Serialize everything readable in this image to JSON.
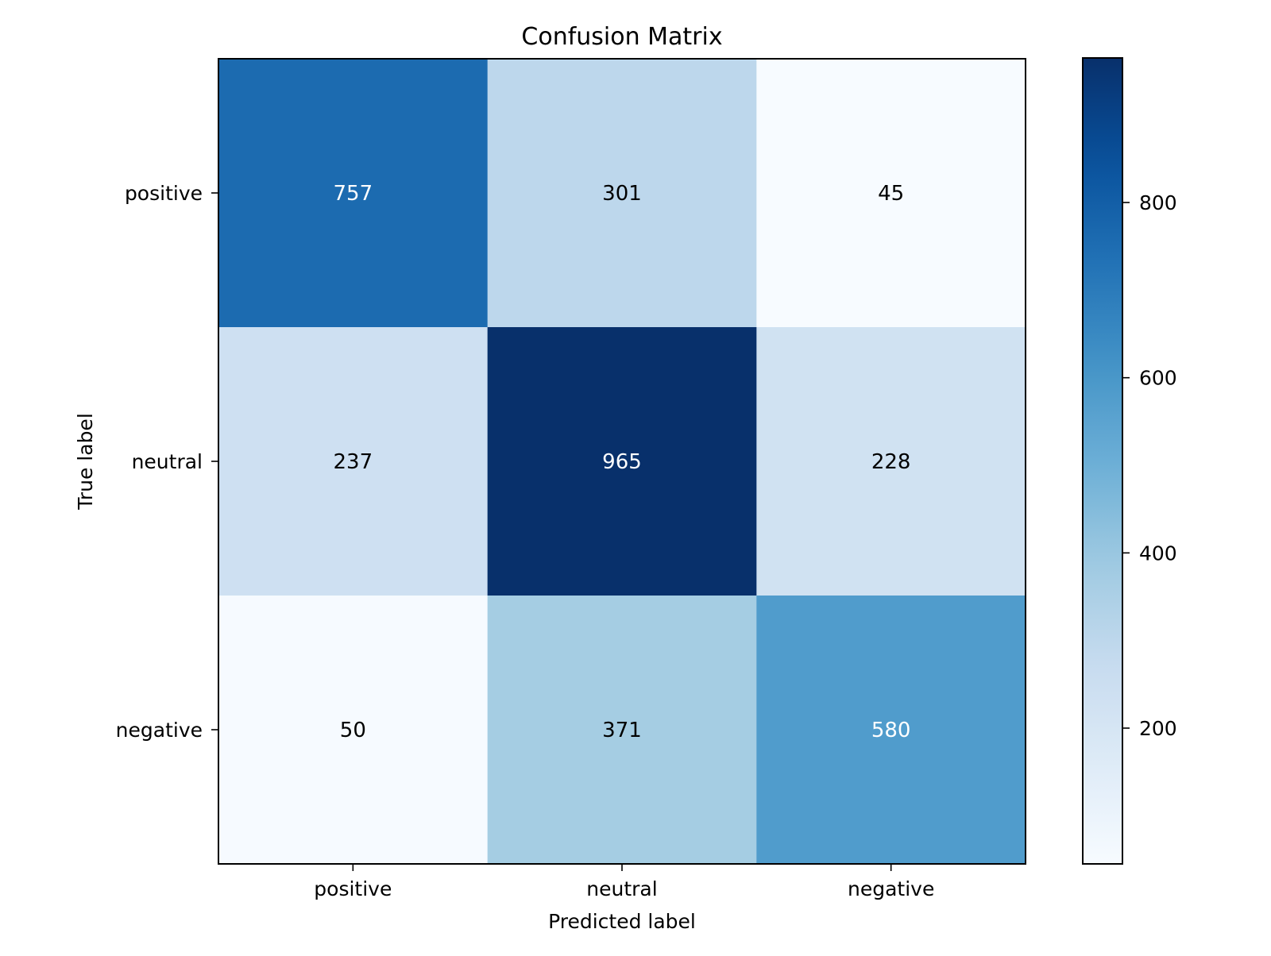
{
  "chart_data": {
    "type": "heatmap",
    "title": "Confusion Matrix",
    "xlabel": "Predicted label",
    "ylabel": "True label",
    "x_categories": [
      "positive",
      "neutral",
      "negative"
    ],
    "y_categories": [
      "positive",
      "neutral",
      "negative"
    ],
    "values": [
      [
        757,
        301,
        45
      ],
      [
        237,
        965,
        228
      ],
      [
        50,
        371,
        580
      ]
    ],
    "colormap": "Blues",
    "color_range": [
      45,
      965
    ],
    "colorbar_ticks": [
      200,
      400,
      600,
      800
    ],
    "colorbar_tick_labels": [
      "200",
      "400",
      "600",
      "800"
    ],
    "text_colors": {
      "dark_cell": "#ffffff",
      "light_cell": "#000000"
    },
    "grid": false
  }
}
